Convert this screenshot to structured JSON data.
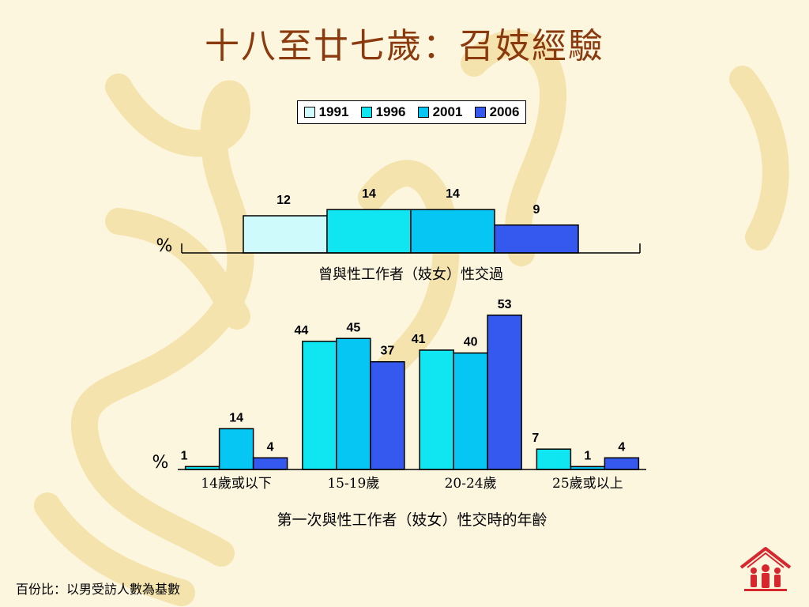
{
  "slide": {
    "title": "十八至廿七歲：召妓經驗",
    "footnote": "百份比：以男受訪人數為基數"
  },
  "legend": {
    "items": [
      {
        "label": "1991",
        "color": "#cffafc"
      },
      {
        "label": "1996",
        "color": "#0fe6f2"
      },
      {
        "label": "2001",
        "color": "#06c6f4"
      },
      {
        "label": "2006",
        "color": "#3558ee"
      }
    ],
    "placement": "top-center"
  },
  "chart_data": [
    {
      "type": "bar",
      "categories": [
        "曾與性工作者（妓女）性交過"
      ],
      "series": [
        {
          "name": "1991",
          "values": [
            12
          ]
        },
        {
          "name": "1996",
          "values": [
            14
          ]
        },
        {
          "name": "2001",
          "values": [
            14
          ]
        },
        {
          "name": "2006",
          "values": [
            9
          ]
        }
      ],
      "ylabel": "%",
      "ylim": [
        0,
        60
      ],
      "grid": false
    },
    {
      "type": "bar",
      "title": "第一次與性工作者（妓女）性交時的年齡",
      "categories": [
        "14歲或以下",
        "15-19歲",
        "20-24歲",
        "25歲或以上"
      ],
      "series": [
        {
          "name": "1996",
          "values": [
            1,
            44,
            41,
            7
          ]
        },
        {
          "name": "2001",
          "values": [
            14,
            45,
            40,
            1
          ]
        },
        {
          "name": "2006",
          "values": [
            4,
            37,
            53,
            4
          ]
        }
      ],
      "ylabel": "%",
      "ylim": [
        0,
        60
      ],
      "grid": false
    }
  ]
}
